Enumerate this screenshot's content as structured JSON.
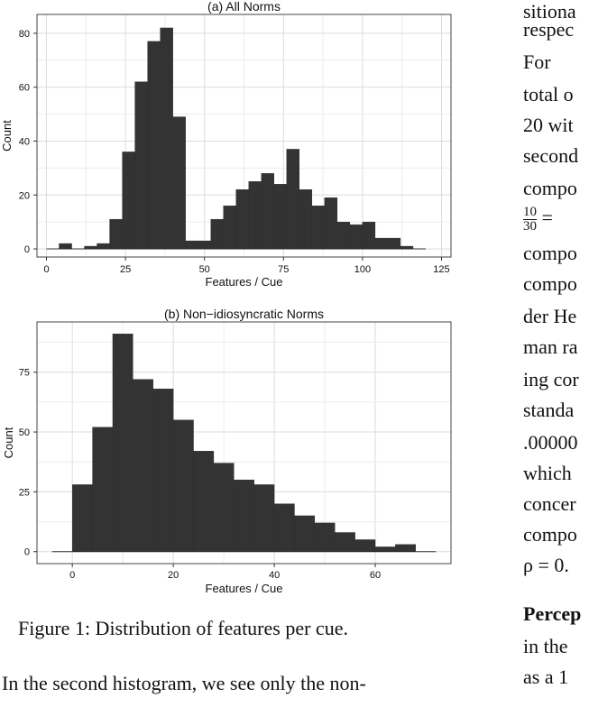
{
  "figure": {
    "caption": "Figure 1: Distribution of features per cue."
  },
  "body_text": {
    "bottom_line": "In the second histogram, we see only the non-"
  },
  "right_column": {
    "lines": [
      "sitiona",
      "respec",
      "For",
      "total o",
      "20 wit",
      "second",
      "compo",
      "= ",
      "compo",
      "compo",
      "der He",
      "man ra",
      "ing cor",
      "standa",
      ".00000",
      "which",
      "concer",
      "compo",
      "ρ = 0.",
      "Percep",
      "in the",
      "as a 1"
    ],
    "fraction": {
      "numerator": "10",
      "denominator": "30"
    }
  },
  "chart_data": [
    {
      "type": "bar",
      "title": "(a) All Norms",
      "xlabel": "Features / Cue",
      "ylabel": "Count",
      "xlim": [
        -3,
        128
      ],
      "ylim": [
        -3,
        87
      ],
      "xticks": [
        0,
        25,
        50,
        75,
        100,
        125
      ],
      "yticks": [
        0,
        20,
        40,
        60,
        80
      ],
      "bin_width": 4,
      "bins_start": [
        4,
        8,
        12,
        16,
        20,
        24,
        28,
        32,
        36,
        40,
        44,
        48,
        52,
        56,
        60,
        64,
        68,
        72,
        76,
        80,
        84,
        88,
        92,
        96,
        100,
        104,
        108,
        112
      ],
      "values": [
        2,
        0,
        1,
        2,
        11,
        36,
        62,
        77,
        82,
        49,
        3,
        3,
        11,
        16,
        22,
        25,
        28,
        24,
        37,
        22,
        16,
        19,
        10,
        9,
        10,
        4,
        4,
        1
      ],
      "bar_color": "#333333",
      "grid": true
    },
    {
      "type": "bar",
      "title": "(b) Non−idiosyncratic Norms",
      "xlabel": "Features / Cue",
      "ylabel": "Count",
      "xlim": [
        -7,
        75
      ],
      "ylim": [
        -5,
        96
      ],
      "xticks": [
        0,
        20,
        40,
        60
      ],
      "yticks": [
        0,
        25,
        50,
        75
      ],
      "bin_width": 4,
      "bins_start": [
        0,
        4,
        8,
        12,
        16,
        20,
        24,
        28,
        32,
        36,
        40,
        44,
        48,
        52,
        56,
        60,
        64
      ],
      "values": [
        28,
        52,
        91,
        72,
        68,
        55,
        42,
        37,
        30,
        28,
        20,
        15,
        12,
        8,
        5,
        2,
        3
      ],
      "bar_color": "#333333",
      "grid": true
    }
  ]
}
